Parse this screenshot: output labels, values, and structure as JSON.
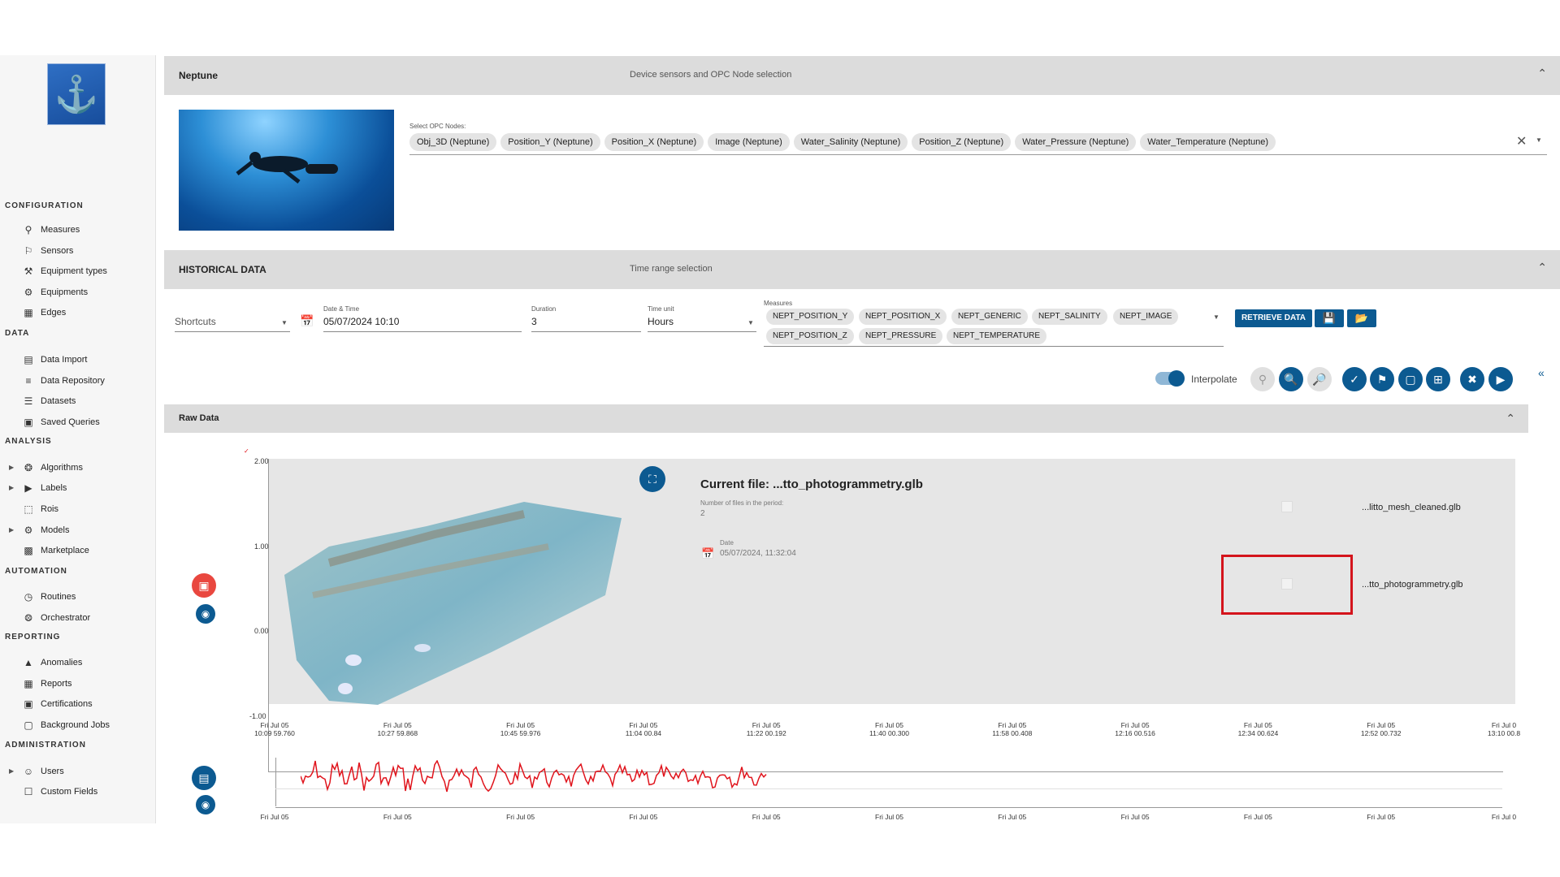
{
  "sidebar": {
    "sections": [
      {
        "title": "CONFIGURATION",
        "items": [
          {
            "label": "Measures",
            "icon": "search-icon"
          },
          {
            "label": "Sensors",
            "icon": "sensor-walk-icon"
          },
          {
            "label": "Equipment types",
            "icon": "tools-icon"
          },
          {
            "label": "Equipments",
            "icon": "equipment-icon"
          },
          {
            "label": "Edges",
            "icon": "edge-device-icon"
          }
        ]
      },
      {
        "title": "DATA",
        "items": [
          {
            "label": "Data Import",
            "icon": "file-import-icon"
          },
          {
            "label": "Data Repository",
            "icon": "database-icon"
          },
          {
            "label": "Datasets",
            "icon": "list-icon"
          },
          {
            "label": "Saved Queries",
            "icon": "saved-query-icon"
          }
        ]
      },
      {
        "title": "ANALYSIS",
        "items": [
          {
            "label": "Algorithms",
            "icon": "algorithm-icon",
            "expandable": true
          },
          {
            "label": "Labels",
            "icon": "label-icon",
            "expandable": true
          },
          {
            "label": "Rois",
            "icon": "roi-icon"
          },
          {
            "label": "Models",
            "icon": "model-icon",
            "expandable": true
          },
          {
            "label": "Marketplace",
            "icon": "marketplace-icon"
          }
        ]
      },
      {
        "title": "AUTOMATION",
        "items": [
          {
            "label": "Routines",
            "icon": "routine-icon"
          },
          {
            "label": "Orchestrator",
            "icon": "orchestrator-icon"
          }
        ]
      },
      {
        "title": "REPORTING",
        "items": [
          {
            "label": "Anomalies",
            "icon": "warning-icon"
          },
          {
            "label": "Reports",
            "icon": "calendar-icon"
          },
          {
            "label": "Certifications",
            "icon": "certificate-icon"
          },
          {
            "label": "Background Jobs",
            "icon": "background-jobs-icon"
          }
        ]
      },
      {
        "title": "ADMINISTRATION",
        "items": [
          {
            "label": "Users",
            "icon": "users-icon",
            "expandable": true
          },
          {
            "label": "Custom Fields",
            "icon": "custom-fields-icon"
          }
        ]
      }
    ]
  },
  "device": {
    "title": "Neptune",
    "subtitle": "Device sensors and OPC Node selection",
    "opc_label": "Select OPC Nodes:",
    "opc_nodes": [
      "Obj_3D (Neptune)",
      "Position_Y (Neptune)",
      "Position_X (Neptune)",
      "Image (Neptune)",
      "Water_Salinity (Neptune)",
      "Position_Z (Neptune)",
      "Water_Pressure (Neptune)",
      "Water_Temperature (Neptune)"
    ]
  },
  "historical": {
    "title": "HISTORICAL DATA",
    "subtitle": "Time range selection",
    "shortcuts_placeholder": "Shortcuts",
    "date_label": "Date & Time",
    "date_value": "05/07/2024 10:10",
    "duration_label": "Duration",
    "duration_value": "3",
    "time_unit_label": "Time unit",
    "time_unit_value": "Hours",
    "measures_label": "Measures",
    "measures": [
      "NEPT_POSITION_Y",
      "NEPT_POSITION_X",
      "NEPT_GENERIC",
      "NEPT_SALINITY",
      "NEPT_IMAGE",
      "NEPT_POSITION_Z",
      "NEPT_PRESSURE",
      "NEPT_TEMPERATURE"
    ],
    "retrieve_label": "RETRIEVE DATA"
  },
  "toolbar": {
    "interpolate_label": "Interpolate",
    "interpolate_on": true
  },
  "raw": {
    "title": "Raw Data",
    "y_ticks": [
      "2.00",
      "1.00",
      "0.00",
      "-1.00"
    ],
    "x_ticks": [
      [
        "Fri Jul 05",
        "10:09 59.760"
      ],
      [
        "Fri Jul 05",
        "10:27 59.868"
      ],
      [
        "Fri Jul 05",
        "10:45 59.976"
      ],
      [
        "Fri Jul 05",
        "11:04 00.84"
      ],
      [
        "Fri Jul 05",
        "11:22 00.192"
      ],
      [
        "Fri Jul 05",
        "11:40 00.300"
      ],
      [
        "Fri Jul 05",
        "11:58 00.408"
      ],
      [
        "Fri Jul 05",
        "12:16 00.516"
      ],
      [
        "Fri Jul 05",
        "12:34 00.624"
      ],
      [
        "Fri Jul 05",
        "12:52 00.732"
      ],
      [
        "Fri Jul 0",
        "13:10 00.8"
      ]
    ],
    "x_ticks_bottom": [
      "Fri Jul 05",
      "Fri Jul 05",
      "Fri Jul 05",
      "Fri Jul 05",
      "Fri Jul 05",
      "Fri Jul 05",
      "Fri Jul 05",
      "Fri Jul 05",
      "Fri Jul 05",
      "Fri Jul 05",
      "Fri Jul 0"
    ],
    "current_file_label": "Current file: ...tto_photogrammetry.glb",
    "num_files_label": "Number of files in the period:",
    "num_files_value": "2",
    "date_label": "Date",
    "date_value": "05/07/2024, 11:32:04",
    "files": [
      "...litto_mesh_cleaned.glb",
      "...tto_photogrammetry.glb"
    ]
  },
  "colors": {
    "primary": "#0c5a91",
    "signal": "#e0141c",
    "highlight": "#d4141c",
    "delete": "#e9473f"
  }
}
